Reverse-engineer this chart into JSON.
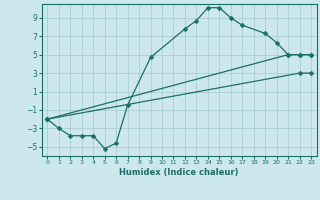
{
  "xlabel": "Humidex (Indice chaleur)",
  "bg_color": "#cce8ec",
  "grid_color": "#aacdd4",
  "line_color": "#1a6e6a",
  "xlim": [
    -0.5,
    23.5
  ],
  "ylim": [
    -6,
    10.5
  ],
  "xticks": [
    0,
    1,
    2,
    3,
    4,
    5,
    6,
    7,
    8,
    9,
    10,
    11,
    12,
    13,
    14,
    15,
    16,
    17,
    18,
    19,
    20,
    21,
    22,
    23
  ],
  "yticks": [
    -5,
    -3,
    -1,
    1,
    3,
    5,
    7,
    9
  ],
  "curve1_x": [
    0,
    1,
    2,
    3,
    4,
    5,
    6,
    7,
    9,
    12,
    13,
    14,
    15,
    16,
    17,
    19,
    20,
    21,
    22,
    23
  ],
  "curve1_y": [
    -2,
    -3,
    -3.8,
    -3.8,
    -3.8,
    -5.2,
    -4.6,
    -0.5,
    4.7,
    7.8,
    8.7,
    10.1,
    10.1,
    9.0,
    8.2,
    7.3,
    6.3,
    5.0,
    5.0,
    5.0
  ],
  "curve2_x": [
    0,
    21,
    22,
    23
  ],
  "curve2_y": [
    -2,
    5.0,
    5.0,
    5.0
  ],
  "curve3_x": [
    0,
    22,
    23
  ],
  "curve3_y": [
    -2,
    3.0,
    3.0
  ],
  "marker": "D",
  "markersize": 2.5
}
